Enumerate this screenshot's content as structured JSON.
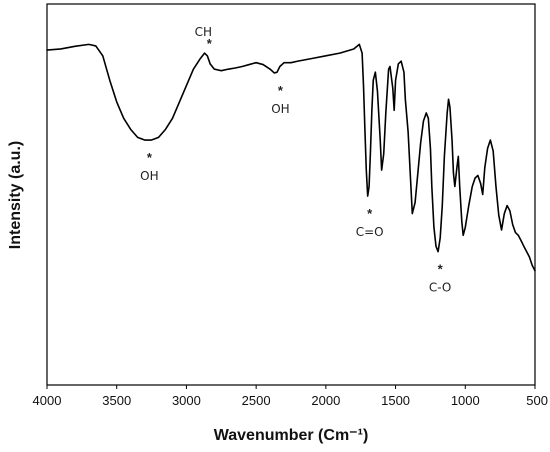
{
  "chart_data": {
    "type": "line",
    "title": "",
    "xlabel": "Wavenumber (Cm⁻¹)",
    "ylabel": "Intensity (a.u.)",
    "xlim": [
      4000,
      500
    ],
    "ylim": [
      0,
      100
    ],
    "x_reversed": true,
    "grid": false,
    "legend": "none",
    "line_color": "#000000",
    "xticks": [
      4000,
      3500,
      3000,
      2500,
      2000,
      1500,
      1000,
      500
    ],
    "yticks": [],
    "series": [
      {
        "x": [
          4000,
          3900,
          3800,
          3700,
          3650,
          3600,
          3550,
          3500,
          3450,
          3400,
          3350,
          3300,
          3250,
          3200,
          3150,
          3100,
          3050,
          3000,
          2950,
          2900,
          2870,
          2850,
          2830,
          2800,
          2750,
          2700,
          2650,
          2600,
          2550,
          2500,
          2450,
          2400,
          2370,
          2350,
          2330,
          2300,
          2250,
          2200,
          2100,
          2000,
          1900,
          1800,
          1760,
          1740,
          1730,
          1720,
          1710,
          1700,
          1690,
          1680,
          1670,
          1660,
          1645,
          1630,
          1610,
          1600,
          1585,
          1570,
          1550,
          1540,
          1520,
          1510,
          1500,
          1480,
          1460,
          1440,
          1430,
          1410,
          1390,
          1380,
          1360,
          1340,
          1320,
          1300,
          1280,
          1265,
          1250,
          1240,
          1225,
          1210,
          1195,
          1180,
          1165,
          1150,
          1130,
          1120,
          1110,
          1095,
          1085,
          1075,
          1060,
          1050,
          1040,
          1025,
          1015,
          1000,
          975,
          950,
          930,
          910,
          890,
          875,
          860,
          840,
          820,
          800,
          780,
          760,
          740,
          720,
          700,
          680,
          660,
          640,
          620,
          600,
          580,
          560,
          540,
          520,
          500
        ],
        "y": [
          87.9,
          88.2,
          88.9,
          89.4,
          89.0,
          86.4,
          80.0,
          74.3,
          70.0,
          67.1,
          65.0,
          64.3,
          64.3,
          65.0,
          67.1,
          70.0,
          74.3,
          78.6,
          82.9,
          85.7,
          87.1,
          86.4,
          84.3,
          82.9,
          82.5,
          82.9,
          83.2,
          83.6,
          84.1,
          84.6,
          84.1,
          82.9,
          81.9,
          82.1,
          83.6,
          84.6,
          84.6,
          85.0,
          85.7,
          86.4,
          87.1,
          88.2,
          89.4,
          87.1,
          78.6,
          67.1,
          56.4,
          49.6,
          52.1,
          61.4,
          72.1,
          80.0,
          82.1,
          77.1,
          64.3,
          56.4,
          60.7,
          71.4,
          82.9,
          83.6,
          77.9,
          72.1,
          80.0,
          84.3,
          85.0,
          82.1,
          75.0,
          66.4,
          52.1,
          45.0,
          47.9,
          55.7,
          63.6,
          69.3,
          71.4,
          70.0,
          62.1,
          52.1,
          41.4,
          36.4,
          35.0,
          38.6,
          47.1,
          60.0,
          71.4,
          75.0,
          72.9,
          64.3,
          55.7,
          52.1,
          57.1,
          60.0,
          52.1,
          42.9,
          39.3,
          41.4,
          47.1,
          52.1,
          54.3,
          55.0,
          52.9,
          50.0,
          57.1,
          62.1,
          64.3,
          61.4,
          52.1,
          44.6,
          40.7,
          45.0,
          47.1,
          45.7,
          42.1,
          40.0,
          39.3,
          37.9,
          36.4,
          35.0,
          33.6,
          31.4,
          30.0
        ]
      }
    ],
    "annotations": [
      {
        "label": "CH",
        "x": 2850,
        "y": 86.4,
        "star_position": "below-label"
      },
      {
        "label": "OH",
        "x": 2340,
        "y": 81.9,
        "star_position": "above-label"
      },
      {
        "label": "OH",
        "x": 3280,
        "y": 64.3,
        "star_position": "above-label"
      },
      {
        "label": "C=O",
        "x": 1700,
        "y": 49.6,
        "star_position": "above-label"
      },
      {
        "label": "C-O",
        "x": 1195,
        "y": 35.0,
        "star_position": "above-label"
      }
    ]
  }
}
